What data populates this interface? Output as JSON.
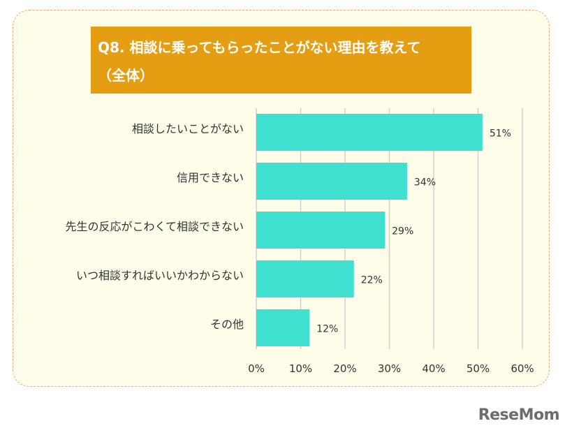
{
  "title": {
    "line1": "Q8. 相談に乗ってもらったことがない理由を教えて",
    "line2": "（全体）"
  },
  "brand": "ReseMom",
  "colors": {
    "bar": "#40e0d0",
    "title_bg": "#e59d12",
    "panel_bg": "#fefde9",
    "panel_border": "#f0a978",
    "grid": "#d0d0d0"
  },
  "chart_data": {
    "type": "bar",
    "orientation": "horizontal",
    "title": "Q8. 相談に乗ってもらったことがない理由を教えて（全体）",
    "categories": [
      "相談したいことがない",
      "信用できない",
      "先生の反応がこわくて相談できない",
      "いつ相談すればいいかわからない",
      "その他"
    ],
    "values": [
      51,
      34,
      29,
      22,
      12
    ],
    "value_labels": [
      "51%",
      "34%",
      "29%",
      "22%",
      "12%"
    ],
    "xlim": [
      0,
      60
    ],
    "ticks": [
      0,
      10,
      20,
      30,
      40,
      50,
      60
    ],
    "tick_labels": [
      "0%",
      "10%",
      "20%",
      "30%",
      "40%",
      "50%",
      "60%"
    ],
    "grid": true,
    "legend": "none"
  }
}
